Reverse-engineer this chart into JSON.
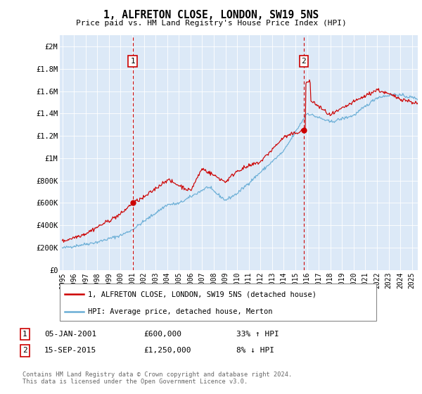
{
  "title": "1, ALFRETON CLOSE, LONDON, SW19 5NS",
  "subtitle": "Price paid vs. HM Land Registry's House Price Index (HPI)",
  "plot_bg_color": "#dce9f7",
  "hpi_color": "#6aaed6",
  "price_color": "#cc0000",
  "annotation1": {
    "label": "1",
    "date_str": "05-JAN-2001",
    "price_str": "£600,000",
    "hpi_str": "33% ↑ HPI",
    "x_year": 2001.04,
    "y_val": 600000
  },
  "annotation2": {
    "label": "2",
    "date_str": "15-SEP-2015",
    "price_str": "£1,250,000",
    "hpi_str": "8% ↓ HPI",
    "x_year": 2015.71,
    "y_val": 1250000
  },
  "legend_line1": "1, ALFRETON CLOSE, LONDON, SW19 5NS (detached house)",
  "legend_line2": "HPI: Average price, detached house, Merton",
  "footer": "Contains HM Land Registry data © Crown copyright and database right 2024.\nThis data is licensed under the Open Government Licence v3.0.",
  "ylim": [
    0,
    2100000
  ],
  "xlim": [
    1994.8,
    2025.5
  ],
  "yticks": [
    0,
    200000,
    400000,
    600000,
    800000,
    1000000,
    1200000,
    1400000,
    1600000,
    1800000,
    2000000
  ],
  "ytick_labels": [
    "£0",
    "£200K",
    "£400K",
    "£600K",
    "£800K",
    "£1M",
    "£1.2M",
    "£1.4M",
    "£1.6M",
    "£1.8M",
    "£2M"
  ],
  "xticks": [
    1995,
    1996,
    1997,
    1998,
    1999,
    2000,
    2001,
    2002,
    2003,
    2004,
    2005,
    2006,
    2007,
    2008,
    2009,
    2010,
    2011,
    2012,
    2013,
    2014,
    2015,
    2016,
    2017,
    2018,
    2019,
    2020,
    2021,
    2022,
    2023,
    2024,
    2025
  ]
}
